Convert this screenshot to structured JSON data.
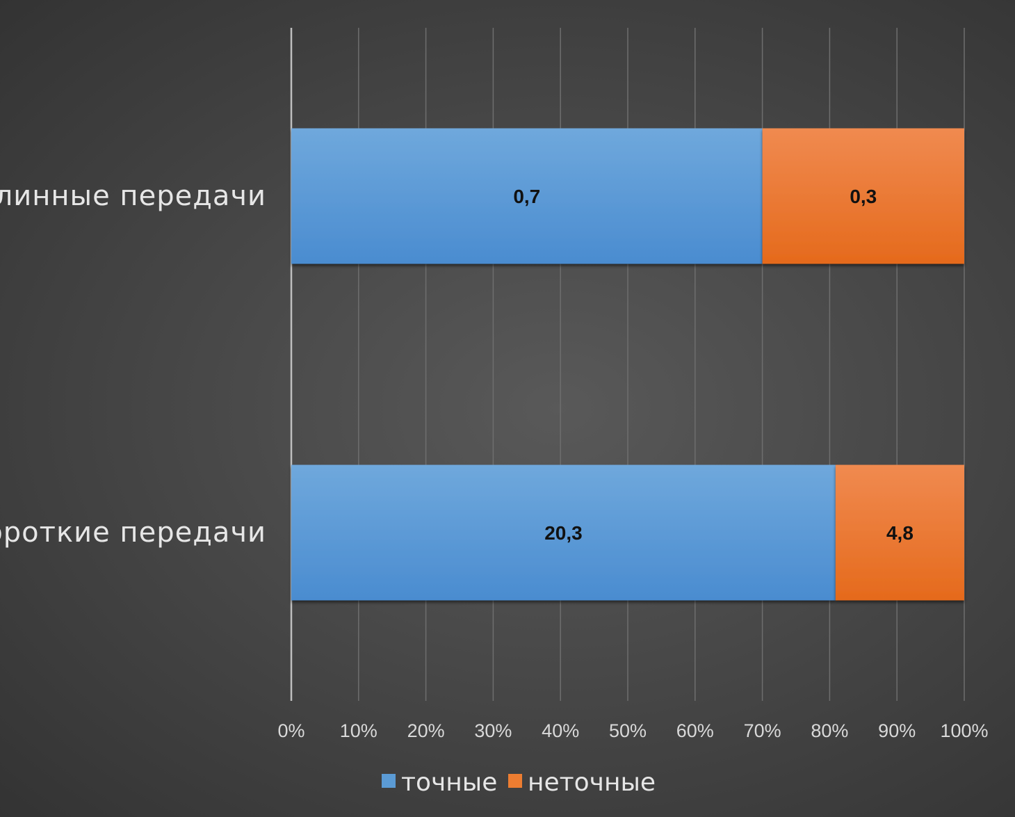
{
  "chart_data": {
    "type": "bar",
    "orientation": "horizontal",
    "stacking": "percent",
    "categories": [
      "длинные передачи",
      "короткие передачи"
    ],
    "series": [
      {
        "name": "точные",
        "values": [
          0.7,
          20.3
        ],
        "color": "#5b9bd5"
      },
      {
        "name": "неточные",
        "values": [
          0.3,
          4.8
        ],
        "color": "#ed7d31"
      }
    ],
    "xlim": [
      0,
      100
    ],
    "x_ticks": [
      "0%",
      "10%",
      "20%",
      "30%",
      "40%",
      "50%",
      "60%",
      "70%",
      "80%",
      "90%",
      "100%"
    ],
    "data_labels": [
      [
        "0,7",
        "0,3"
      ],
      [
        "20,3",
        "4,8"
      ]
    ],
    "grid": "vertical",
    "legend_position": "bottom",
    "background": "#4a4a4a"
  }
}
